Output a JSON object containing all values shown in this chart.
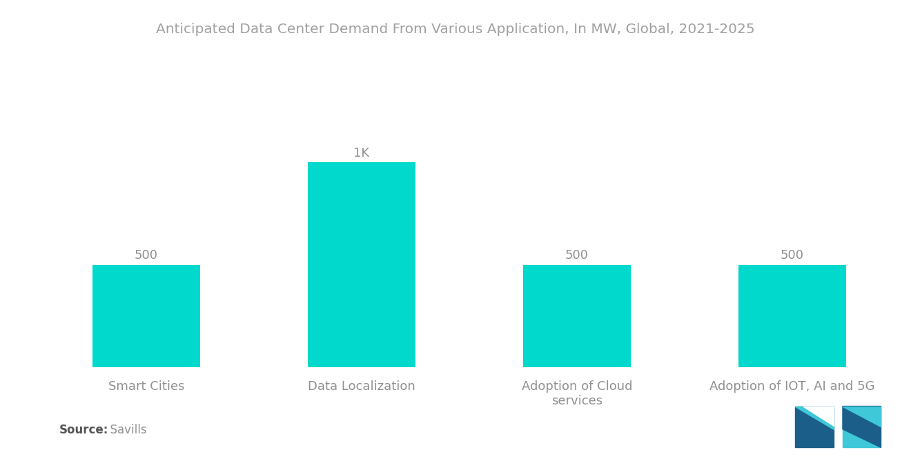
{
  "title": "Anticipated Data Center Demand From Various Application, In MW, Global, 2021-2025",
  "categories": [
    "Smart Cities",
    "Data Localization",
    "Adoption of Cloud\nservices",
    "Adoption of IOT, AI and 5G"
  ],
  "values": [
    500,
    1000,
    500,
    500
  ],
  "labels": [
    "500",
    "1K",
    "500",
    "500"
  ],
  "bar_color": "#00D9CC",
  "background_color": "#FFFFFF",
  "title_color": "#A0A0A0",
  "label_color": "#909090",
  "xtick_color": "#909090",
  "source_bold": "Source:",
  "source_rest": "  Savills",
  "ylim": [
    0,
    1300
  ],
  "title_fontsize": 14.5,
  "label_fontsize": 13,
  "xtick_fontsize": 13,
  "source_fontsize": 12,
  "bar_width": 0.5,
  "logo_dark": "#1B5E8A",
  "logo_light": "#3EC8D8"
}
